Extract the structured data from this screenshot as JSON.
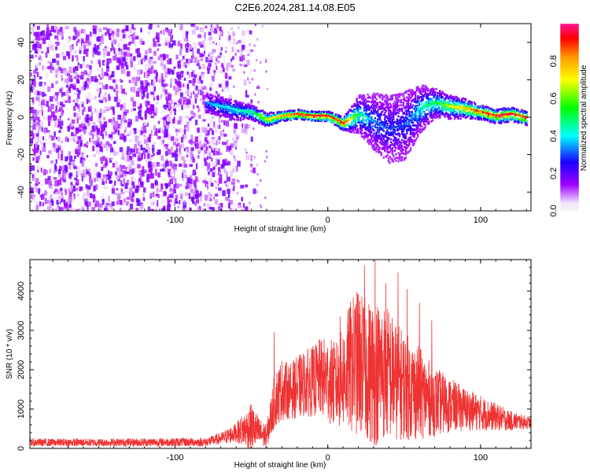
{
  "title": "C2E6.2024.281.14.08.E05",
  "chart_data": [
    {
      "type": "heatmap",
      "xlabel": "Height of straight line (km)",
      "ylabel": "Frequency (Hz)",
      "xlim": [
        -195,
        133
      ],
      "ylim": [
        -50,
        50
      ],
      "xticks": [
        -100,
        0,
        100
      ],
      "yticks": [
        -40,
        -20,
        0,
        20,
        40
      ],
      "colorbar": {
        "label": "Normalized spectral amplitude",
        "range": [
          0,
          1
        ],
        "ticks": [
          "0.0",
          "0.2",
          "0.4",
          "0.6",
          "0.8"
        ]
      },
      "ridge_x": [
        -80,
        -70,
        -60,
        -50,
        -40,
        -30,
        -20,
        -10,
        0,
        10,
        20,
        30,
        40,
        50,
        60,
        70,
        80,
        90,
        100,
        110,
        120,
        130
      ],
      "ridge_y": [
        8,
        6,
        4,
        3,
        -1,
        1,
        2,
        1,
        1,
        -3,
        2,
        -2,
        -6,
        -4,
        5,
        8,
        6,
        5,
        3,
        1,
        2,
        0
      ],
      "ridge_width": [
        4,
        4,
        4,
        3,
        3,
        2,
        2,
        2,
        2,
        3,
        8,
        12,
        14,
        14,
        10,
        6,
        5,
        4,
        3,
        3,
        3,
        3
      ],
      "ridge_peak_amplitude": [
        0.35,
        0.4,
        0.45,
        0.5,
        0.7,
        0.8,
        0.9,
        0.95,
        0.95,
        0.9,
        0.5,
        0.35,
        0.3,
        0.3,
        0.45,
        0.55,
        0.7,
        0.8,
        0.9,
        0.95,
        0.95,
        0.9
      ],
      "noise_region_x": [
        -195,
        -80
      ],
      "noise_fade_x": [
        -80,
        -45
      ],
      "noise_amplitude": 0.15
    },
    {
      "type": "line",
      "xlabel": "Height of straight line (km)",
      "ylabel": "SNR (10 * v/v)",
      "xlim": [
        -195,
        133
      ],
      "ylim": [
        0,
        4800
      ],
      "xticks": [
        -100,
        0,
        100
      ],
      "yticks": [
        0,
        1000,
        2000,
        3000,
        4000
      ],
      "color": "#ee3333",
      "envelope_x": [
        -195,
        -150,
        -100,
        -80,
        -70,
        -60,
        -50,
        -45,
        -40,
        -35,
        -30,
        -25,
        -20,
        -15,
        -10,
        -5,
        0,
        5,
        10,
        15,
        20,
        25,
        30,
        35,
        40,
        45,
        50,
        55,
        60,
        65,
        70,
        80,
        90,
        100,
        110,
        120,
        133
      ],
      "envelope_mean": [
        150,
        150,
        160,
        160,
        250,
        400,
        550,
        400,
        300,
        1200,
        1500,
        1450,
        1550,
        1650,
        1700,
        1800,
        1750,
        1600,
        1800,
        2100,
        2200,
        2000,
        1900,
        2000,
        1900,
        1700,
        1600,
        1500,
        1400,
        1300,
        1200,
        1100,
        1000,
        900,
        800,
        700,
        650
      ],
      "envelope_amp": [
        100,
        100,
        110,
        110,
        150,
        250,
        600,
        400,
        300,
        700,
        800,
        700,
        800,
        850,
        900,
        1000,
        1100,
        1100,
        1300,
        1700,
        1900,
        1800,
        1900,
        1800,
        1700,
        1500,
        1400,
        1300,
        1200,
        1000,
        900,
        700,
        550,
        450,
        350,
        250,
        150
      ],
      "spikes": [
        {
          "x": -35,
          "y": 2950
        },
        {
          "x": 8,
          "y": 3350
        },
        {
          "x": 24,
          "y": 4650
        },
        {
          "x": 31,
          "y": 4780
        },
        {
          "x": 38,
          "y": 4200
        },
        {
          "x": 46,
          "y": 4470
        },
        {
          "x": 52,
          "y": 4050
        },
        {
          "x": 60,
          "y": 3700
        },
        {
          "x": 68,
          "y": 3250
        }
      ]
    }
  ]
}
